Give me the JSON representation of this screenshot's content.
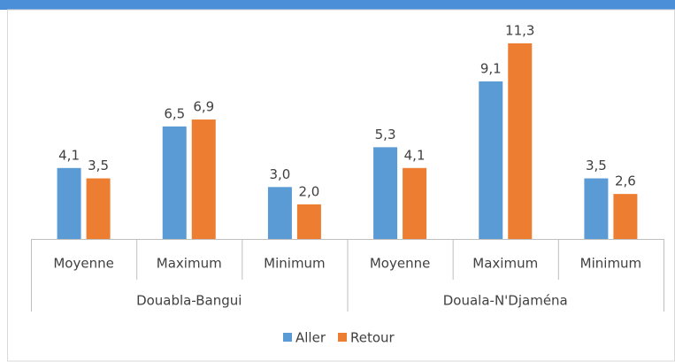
{
  "chart_data": {
    "type": "bar",
    "groups": [
      {
        "name": "Douabla-Bangui",
        "categories": [
          "Moyenne",
          "Maximum",
          "Minimum"
        ]
      },
      {
        "name": "Douala-N'Djaména",
        "categories": [
          "Moyenne",
          "Maximum",
          "Minimum"
        ]
      }
    ],
    "series": [
      {
        "name": "Aller",
        "color": "#5b9bd5",
        "values": [
          4.1,
          6.5,
          3.0,
          5.3,
          9.1,
          3.5
        ],
        "value_labels": [
          "4,1",
          "6,5",
          "3,0",
          "5,3",
          "9,1",
          "3,5"
        ]
      },
      {
        "name": "Retour",
        "color": "#ed7d31",
        "values": [
          3.5,
          6.9,
          2.0,
          4.1,
          11.3,
          2.6
        ],
        "value_labels": [
          "3,5",
          "6,9",
          "2,0",
          "4,1",
          "11,3",
          "2,6"
        ]
      }
    ],
    "legend": "bottom"
  }
}
